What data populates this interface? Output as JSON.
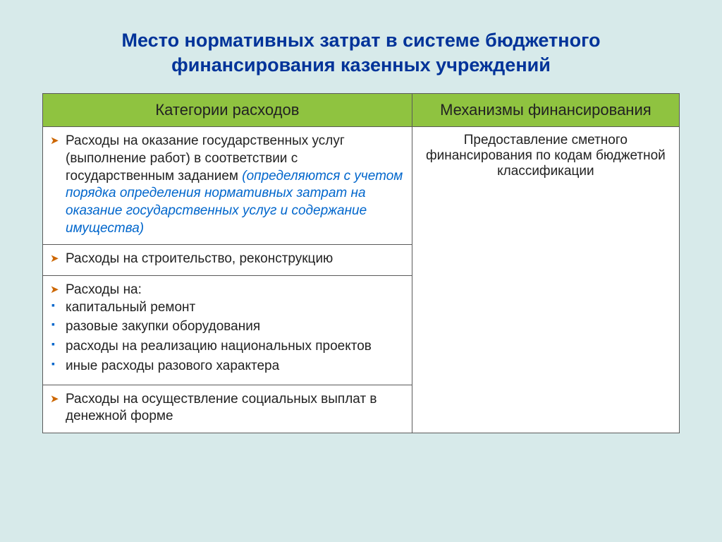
{
  "title_line1": "Место нормативных затрат в системе бюджетного",
  "title_line2": "финансирования казенных учреждений",
  "table": {
    "header_left": "Категории расходов",
    "header_right": "Механизмы финансирования",
    "row1_prefix": "Расходы на оказание государственных услуг (выполнение работ) в соответствии с государственным заданием ",
    "row1_emph": "(определяются с учетом порядка определения нормативных затрат на оказание государственных услуг и содержание имущества)",
    "right_merged": "Предоставление сметного финансирования по кодам бюджетной классификации",
    "row2": "Расходы на строительство, реконструкцию",
    "row3_lead": "Расходы на:",
    "row3_items": {
      "0": "капитальный ремонт",
      "1": "разовые закупки оборудования",
      "2": "расходы на реализацию национальных проектов",
      "3": "иные расходы разового характера"
    },
    "row4": "Расходы на осуществление социальных выплат в денежной форме"
  },
  "colors": {
    "background": "#d7eaea",
    "header_bg": "#8fc340",
    "title_color": "#003399",
    "emph_color": "#0066cc",
    "bullet_arrow": "#cc6600",
    "bullet_square": "#0066cc",
    "border": "#5a5a5a",
    "alt_row": "#f3f3f3"
  },
  "layout": {
    "col_left_pct": 58,
    "col_right_pct": 42,
    "title_fontsize": 27,
    "header_fontsize": 22,
    "cell_fontsize": 19
  }
}
